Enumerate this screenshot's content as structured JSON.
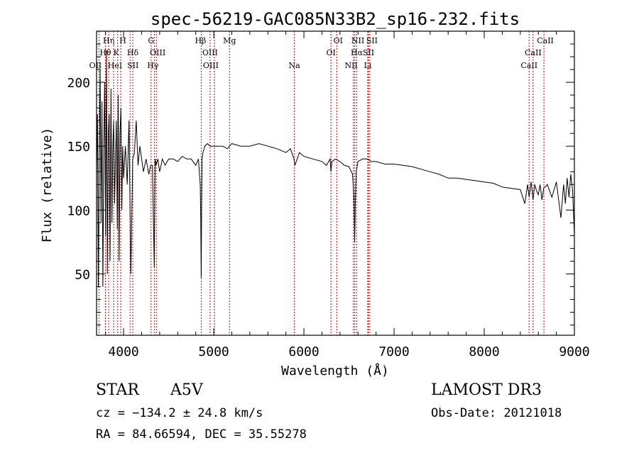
{
  "chart_data": {
    "type": "line",
    "title": "spec-56219-GAC085N33B2_sp16-232.fits",
    "xlabel": "Wavelength (Å)",
    "ylabel": "Flux (relative)",
    "xlim": [
      3700,
      9000
    ],
    "ylim": [
      2,
      240
    ],
    "grid": false,
    "x_ticks": [
      4000,
      5000,
      6000,
      7000,
      8000,
      9000
    ],
    "x_tick_labels": [
      "4000",
      "5000",
      "6000",
      "7000",
      "8000",
      "9000"
    ],
    "y_ticks": [
      50,
      100,
      150,
      200
    ],
    "y_tick_labels": [
      "50",
      "100",
      "150",
      "200"
    ],
    "series": [
      {
        "name": "flux",
        "x": [
          3700,
          3710,
          3720,
          3730,
          3740,
          3750,
          3760,
          3770,
          3780,
          3790,
          3800,
          3810,
          3820,
          3830,
          3840,
          3850,
          3860,
          3870,
          3880,
          3890,
          3900,
          3910,
          3920,
          3930,
          3940,
          3950,
          3960,
          3970,
          3980,
          3990,
          4000,
          4020,
          4040,
          4060,
          4080,
          4101,
          4120,
          4140,
          4160,
          4180,
          4200,
          4220,
          4250,
          4280,
          4300,
          4320,
          4340,
          4350,
          4360,
          4380,
          4400,
          4430,
          4460,
          4500,
          4550,
          4600,
          4650,
          4700,
          4750,
          4800,
          4830,
          4850,
          4855,
          4861,
          4866,
          4870,
          4880,
          4900,
          4930,
          4960,
          5000,
          5050,
          5100,
          5150,
          5200,
          5300,
          5400,
          5500,
          5600,
          5700,
          5800,
          5850,
          5890,
          5900,
          5950,
          6000,
          6100,
          6200,
          6250,
          6290,
          6300,
          6310,
          6350,
          6400,
          6450,
          6500,
          6540,
          6555,
          6563,
          6570,
          6580,
          6600,
          6650,
          6700,
          6750,
          6800,
          6900,
          7000,
          7100,
          7200,
          7300,
          7400,
          7500,
          7600,
          7700,
          7800,
          7900,
          8000,
          8100,
          8200,
          8300,
          8400,
          8450,
          8480,
          8498,
          8520,
          8542,
          8560,
          8580,
          8600,
          8620,
          8640,
          8662,
          8680,
          8700,
          8750,
          8800,
          8850,
          8880,
          8900,
          8920,
          8940,
          8960,
          8980,
          9000
        ],
        "y": [
          130,
          175,
          40,
          140,
          210,
          90,
          185,
          40,
          150,
          200,
          80,
          225,
          50,
          160,
          175,
          60,
          195,
          90,
          150,
          170,
          105,
          140,
          170,
          85,
          190,
          60,
          160,
          180,
          100,
          150,
          125,
          150,
          120,
          170,
          50,
          140,
          145,
          170,
          135,
          150,
          140,
          130,
          140,
          128,
          135,
          135,
          55,
          140,
          135,
          140,
          130,
          140,
          135,
          140,
          140,
          138,
          142,
          140,
          140,
          135,
          140,
          120,
          95,
          47,
          110,
          140,
          145,
          150,
          152,
          150,
          150,
          150,
          150,
          148,
          152,
          150,
          150,
          152,
          150,
          148,
          145,
          148,
          140,
          135,
          145,
          142,
          140,
          138,
          135,
          140,
          130,
          138,
          140,
          138,
          135,
          134,
          128,
          110,
          75,
          105,
          130,
          138,
          140,
          140,
          138,
          138,
          136,
          136,
          135,
          134,
          132,
          130,
          128,
          125,
          125,
          124,
          123,
          122,
          121,
          118,
          117,
          116,
          105,
          120,
          110,
          122,
          108,
          120,
          115,
          112,
          120,
          108,
          118,
          118,
          120,
          110,
          122,
          94,
          120,
          105,
          125,
          110,
          128,
          115,
          80
        ]
      }
    ],
    "line_markers": [
      {
        "name": "OII",
        "wavelength": 3727
      },
      {
        "name": "Hθ",
        "wavelength": 3798
      },
      {
        "name": "Hη",
        "wavelength": 3835
      },
      {
        "name": "HeI",
        "wavelength": 3889
      },
      {
        "name": "K",
        "wavelength": 3934
      },
      {
        "name": "H",
        "wavelength": 3968
      },
      {
        "name": "SII",
        "wavelength": 4072
      },
      {
        "name": "Hδ",
        "wavelength": 4102
      },
      {
        "name": "G",
        "wavelength": 4305
      },
      {
        "name": "Hγ",
        "wavelength": 4341
      },
      {
        "name": "OIII",
        "wavelength": 4363
      },
      {
        "name": "Hβ",
        "wavelength": 4861
      },
      {
        "name": "OIII",
        "wavelength": 4959
      },
      {
        "name": "OIII",
        "wavelength": 5007
      },
      {
        "name": "Mg",
        "wavelength": 5175
      },
      {
        "name": "Na",
        "wavelength": 5894
      },
      {
        "name": "OI",
        "wavelength": 6300
      },
      {
        "name": "OI",
        "wavelength": 6364
      },
      {
        "name": "NII",
        "wavelength": 6548
      },
      {
        "name": "Hα",
        "wavelength": 6563
      },
      {
        "name": "NII",
        "wavelength": 6583
      },
      {
        "name": "Li",
        "wavelength": 6708
      },
      {
        "name": "SII",
        "wavelength": 6716
      },
      {
        "name": "SII",
        "wavelength": 6731
      },
      {
        "name": "CaII",
        "wavelength": 8498
      },
      {
        "name": "CaII",
        "wavelength": 8542
      },
      {
        "name": "CaII",
        "wavelength": 8662
      }
    ]
  },
  "info": {
    "object_class": "STAR",
    "subclass": "A5V",
    "survey": "LAMOST DR3",
    "velocity": "cz = −134.2 ± 24.8 km/s",
    "obs_date": "Obs-Date: 20121018",
    "coords": "RA =  84.66594, DEC =  35.55278"
  },
  "colors": {
    "spectrum": "#000000",
    "marker_line": "#cc0000",
    "text": "#000000"
  }
}
